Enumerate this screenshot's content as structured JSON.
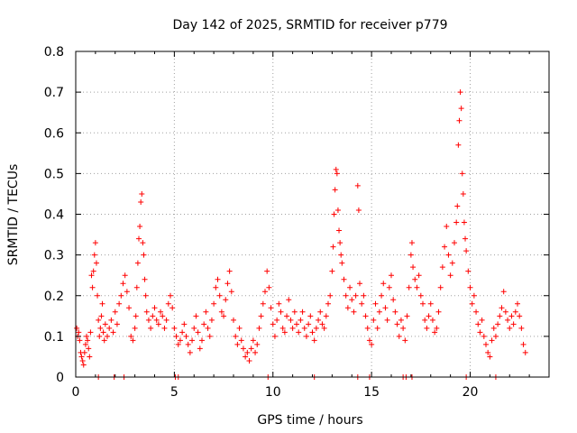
{
  "chart_data": {
    "type": "scatter",
    "title": "Day 142 of 2025, SRMTID for receiver p779",
    "xlabel": "GPS time / hours",
    "ylabel": "SRMTID / TECUs",
    "xlim": [
      0,
      24
    ],
    "ylim": [
      0,
      0.8
    ],
    "grid": true,
    "marker": "plus",
    "color": "#ff0000",
    "x_ticks": [
      {
        "value": 0,
        "label": "0"
      },
      {
        "value": 5,
        "label": "5"
      },
      {
        "value": 10,
        "label": "10"
      },
      {
        "value": 15,
        "label": "15"
      },
      {
        "value": 20,
        "label": "20"
      }
    ],
    "y_ticks": [
      {
        "value": 0,
        "label": "0"
      },
      {
        "value": 0.1,
        "label": "0.1"
      },
      {
        "value": 0.2,
        "label": "0.2"
      },
      {
        "value": 0.3,
        "label": "0.3"
      },
      {
        "value": 0.4,
        "label": "0.4"
      },
      {
        "value": 0.5,
        "label": "0.5"
      },
      {
        "value": 0.6,
        "label": "0.6"
      },
      {
        "value": 0.7,
        "label": "0.7"
      },
      {
        "value": 0.8,
        "label": "0.8"
      }
    ],
    "series": [
      {
        "name": "SRMTID",
        "points": [
          [
            0.05,
            0.12
          ],
          [
            0.1,
            0.1
          ],
          [
            0.15,
            0.11
          ],
          [
            0.2,
            0.09
          ],
          [
            0.25,
            0.06
          ],
          [
            0.3,
            0.05
          ],
          [
            0.35,
            0.04
          ],
          [
            0.4,
            0.03
          ],
          [
            0.45,
            0.06
          ],
          [
            0.5,
            0.08
          ],
          [
            0.55,
            0.1
          ],
          [
            0.6,
            0.09
          ],
          [
            0.65,
            0.07
          ],
          [
            0.7,
            0.05
          ],
          [
            0.75,
            0.11
          ],
          [
            0.8,
            0.25
          ],
          [
            0.85,
            0.22
          ],
          [
            0.9,
            0.26
          ],
          [
            0.95,
            0.3
          ],
          [
            1.0,
            0.33
          ],
          [
            1.05,
            0.28
          ],
          [
            1.1,
            0.2
          ],
          [
            1.15,
            0.14
          ],
          [
            1.2,
            0.1
          ],
          [
            1.25,
            0.12
          ],
          [
            1.3,
            0.15
          ],
          [
            1.35,
            0.18
          ],
          [
            1.4,
            0.11
          ],
          [
            1.45,
            0.09
          ],
          [
            1.5,
            0.13
          ],
          [
            1.6,
            0.1
          ],
          [
            1.7,
            0.12
          ],
          [
            1.8,
            0.14
          ],
          [
            1.9,
            0.11
          ],
          [
            2.0,
            0.16
          ],
          [
            2.1,
            0.13
          ],
          [
            2.2,
            0.18
          ],
          [
            2.3,
            0.2
          ],
          [
            2.4,
            0.23
          ],
          [
            2.5,
            0.25
          ],
          [
            2.6,
            0.21
          ],
          [
            2.7,
            0.17
          ],
          [
            2.8,
            0.1
          ],
          [
            2.9,
            0.09
          ],
          [
            3.0,
            0.12
          ],
          [
            3.05,
            0.15
          ],
          [
            3.1,
            0.22
          ],
          [
            3.15,
            0.28
          ],
          [
            3.2,
            0.34
          ],
          [
            3.25,
            0.37
          ],
          [
            3.3,
            0.43
          ],
          [
            3.35,
            0.45
          ],
          [
            3.4,
            0.33
          ],
          [
            3.45,
            0.3
          ],
          [
            3.5,
            0.24
          ],
          [
            3.55,
            0.2
          ],
          [
            3.6,
            0.16
          ],
          [
            3.7,
            0.14
          ],
          [
            3.8,
            0.12
          ],
          [
            3.9,
            0.15
          ],
          [
            4.0,
            0.17
          ],
          [
            4.1,
            0.14
          ],
          [
            4.2,
            0.13
          ],
          [
            4.3,
            0.16
          ],
          [
            4.4,
            0.15
          ],
          [
            4.5,
            0.12
          ],
          [
            4.6,
            0.14
          ],
          [
            4.7,
            0.18
          ],
          [
            4.8,
            0.2
          ],
          [
            4.9,
            0.17
          ],
          [
            5.0,
            0.12
          ],
          [
            5.1,
            0.1
          ],
          [
            5.2,
            0.08
          ],
          [
            5.3,
            0.09
          ],
          [
            5.4,
            0.11
          ],
          [
            5.5,
            0.13
          ],
          [
            5.6,
            0.1
          ],
          [
            5.7,
            0.08
          ],
          [
            5.8,
            0.06
          ],
          [
            5.9,
            0.09
          ],
          [
            6.0,
            0.12
          ],
          [
            6.1,
            0.15
          ],
          [
            6.2,
            0.11
          ],
          [
            6.3,
            0.07
          ],
          [
            6.4,
            0.09
          ],
          [
            6.5,
            0.13
          ],
          [
            6.6,
            0.16
          ],
          [
            6.7,
            0.12
          ],
          [
            6.8,
            0.1
          ],
          [
            6.9,
            0.14
          ],
          [
            7.0,
            0.18
          ],
          [
            7.1,
            0.22
          ],
          [
            7.2,
            0.24
          ],
          [
            7.3,
            0.2
          ],
          [
            7.4,
            0.16
          ],
          [
            7.5,
            0.15
          ],
          [
            7.6,
            0.19
          ],
          [
            7.7,
            0.23
          ],
          [
            7.8,
            0.26
          ],
          [
            7.9,
            0.21
          ],
          [
            8.0,
            0.14
          ],
          [
            8.1,
            0.1
          ],
          [
            8.2,
            0.08
          ],
          [
            8.3,
            0.12
          ],
          [
            8.4,
            0.09
          ],
          [
            8.5,
            0.07
          ],
          [
            8.6,
            0.05
          ],
          [
            8.7,
            0.06
          ],
          [
            8.8,
            0.04
          ],
          [
            8.9,
            0.07
          ],
          [
            9.0,
            0.09
          ],
          [
            9.1,
            0.06
          ],
          [
            9.2,
            0.08
          ],
          [
            9.3,
            0.12
          ],
          [
            9.4,
            0.15
          ],
          [
            9.5,
            0.18
          ],
          [
            9.6,
            0.21
          ],
          [
            9.7,
            0.26
          ],
          [
            9.8,
            0.22
          ],
          [
            9.9,
            0.17
          ],
          [
            10.0,
            0.13
          ],
          [
            10.1,
            0.1
          ],
          [
            10.2,
            0.14
          ],
          [
            10.3,
            0.18
          ],
          [
            10.4,
            0.16
          ],
          [
            10.5,
            0.12
          ],
          [
            10.6,
            0.11
          ],
          [
            10.7,
            0.15
          ],
          [
            10.8,
            0.19
          ],
          [
            10.9,
            0.14
          ],
          [
            11.0,
            0.12
          ],
          [
            11.1,
            0.16
          ],
          [
            11.2,
            0.13
          ],
          [
            11.3,
            0.11
          ],
          [
            11.4,
            0.14
          ],
          [
            11.5,
            0.16
          ],
          [
            11.6,
            0.12
          ],
          [
            11.7,
            0.1
          ],
          [
            11.8,
            0.13
          ],
          [
            11.9,
            0.15
          ],
          [
            12.0,
            0.11
          ],
          [
            12.1,
            0.09
          ],
          [
            12.2,
            0.12
          ],
          [
            12.3,
            0.14
          ],
          [
            12.4,
            0.16
          ],
          [
            12.5,
            0.13
          ],
          [
            12.6,
            0.12
          ],
          [
            12.7,
            0.15
          ],
          [
            12.8,
            0.18
          ],
          [
            12.9,
            0.2
          ],
          [
            13.0,
            0.26
          ],
          [
            13.05,
            0.32
          ],
          [
            13.1,
            0.4
          ],
          [
            13.15,
            0.46
          ],
          [
            13.2,
            0.51
          ],
          [
            13.25,
            0.5
          ],
          [
            13.3,
            0.41
          ],
          [
            13.35,
            0.36
          ],
          [
            13.4,
            0.33
          ],
          [
            13.45,
            0.3
          ],
          [
            13.5,
            0.28
          ],
          [
            13.6,
            0.24
          ],
          [
            13.7,
            0.2
          ],
          [
            13.8,
            0.17
          ],
          [
            13.9,
            0.22
          ],
          [
            14.0,
            0.19
          ],
          [
            14.1,
            0.16
          ],
          [
            14.2,
            0.2
          ],
          [
            14.3,
            0.47
          ],
          [
            14.35,
            0.41
          ],
          [
            14.4,
            0.23
          ],
          [
            14.5,
            0.18
          ],
          [
            14.6,
            0.2
          ],
          [
            14.7,
            0.15
          ],
          [
            14.8,
            0.12
          ],
          [
            14.9,
            0.09
          ],
          [
            15.0,
            0.08
          ],
          [
            15.1,
            0.14
          ],
          [
            15.2,
            0.18
          ],
          [
            15.3,
            0.12
          ],
          [
            15.4,
            0.16
          ],
          [
            15.5,
            0.2
          ],
          [
            15.6,
            0.23
          ],
          [
            15.7,
            0.17
          ],
          [
            15.8,
            0.14
          ],
          [
            15.9,
            0.22
          ],
          [
            16.0,
            0.25
          ],
          [
            16.1,
            0.19
          ],
          [
            16.2,
            0.16
          ],
          [
            16.3,
            0.13
          ],
          [
            16.4,
            0.1
          ],
          [
            16.5,
            0.14
          ],
          [
            16.6,
            0.12
          ],
          [
            16.7,
            0.09
          ],
          [
            16.8,
            0.15
          ],
          [
            16.9,
            0.22
          ],
          [
            17.0,
            0.3
          ],
          [
            17.05,
            0.33
          ],
          [
            17.1,
            0.27
          ],
          [
            17.2,
            0.24
          ],
          [
            17.3,
            0.22
          ],
          [
            17.4,
            0.25
          ],
          [
            17.5,
            0.2
          ],
          [
            17.6,
            0.18
          ],
          [
            17.7,
            0.14
          ],
          [
            17.8,
            0.12
          ],
          [
            17.9,
            0.15
          ],
          [
            18.0,
            0.18
          ],
          [
            18.1,
            0.14
          ],
          [
            18.2,
            0.11
          ],
          [
            18.3,
            0.12
          ],
          [
            18.4,
            0.16
          ],
          [
            18.5,
            0.22
          ],
          [
            18.6,
            0.27
          ],
          [
            18.7,
            0.32
          ],
          [
            18.8,
            0.37
          ],
          [
            18.9,
            0.3
          ],
          [
            19.0,
            0.25
          ],
          [
            19.1,
            0.28
          ],
          [
            19.2,
            0.33
          ],
          [
            19.3,
            0.38
          ],
          [
            19.35,
            0.42
          ],
          [
            19.4,
            0.57
          ],
          [
            19.45,
            0.63
          ],
          [
            19.5,
            0.7
          ],
          [
            19.55,
            0.66
          ],
          [
            19.6,
            0.5
          ],
          [
            19.65,
            0.45
          ],
          [
            19.7,
            0.38
          ],
          [
            19.75,
            0.34
          ],
          [
            19.8,
            0.31
          ],
          [
            19.9,
            0.26
          ],
          [
            20.0,
            0.22
          ],
          [
            20.1,
            0.18
          ],
          [
            20.2,
            0.2
          ],
          [
            20.3,
            0.16
          ],
          [
            20.4,
            0.13
          ],
          [
            20.5,
            0.11
          ],
          [
            20.6,
            0.14
          ],
          [
            20.7,
            0.1
          ],
          [
            20.8,
            0.08
          ],
          [
            20.9,
            0.06
          ],
          [
            21.0,
            0.05
          ],
          [
            21.1,
            0.09
          ],
          [
            21.2,
            0.12
          ],
          [
            21.3,
            0.1
          ],
          [
            21.4,
            0.13
          ],
          [
            21.5,
            0.15
          ],
          [
            21.6,
            0.17
          ],
          [
            21.7,
            0.21
          ],
          [
            21.8,
            0.16
          ],
          [
            21.9,
            0.14
          ],
          [
            22.0,
            0.12
          ],
          [
            22.1,
            0.15
          ],
          [
            22.2,
            0.13
          ],
          [
            22.3,
            0.16
          ],
          [
            22.4,
            0.18
          ],
          [
            22.5,
            0.15
          ],
          [
            22.6,
            0.12
          ],
          [
            22.7,
            0.08
          ],
          [
            22.8,
            0.06
          ],
          [
            1.15,
            0
          ],
          [
            1.95,
            0
          ],
          [
            2.45,
            0
          ],
          [
            5.05,
            0
          ],
          [
            5.2,
            0
          ],
          [
            9.75,
            0
          ],
          [
            12.1,
            0
          ],
          [
            14.3,
            0
          ],
          [
            14.9,
            0
          ],
          [
            16.6,
            0
          ],
          [
            16.75,
            0
          ],
          [
            17.05,
            0
          ],
          [
            19.8,
            0
          ],
          [
            21.3,
            0
          ]
        ]
      }
    ]
  }
}
